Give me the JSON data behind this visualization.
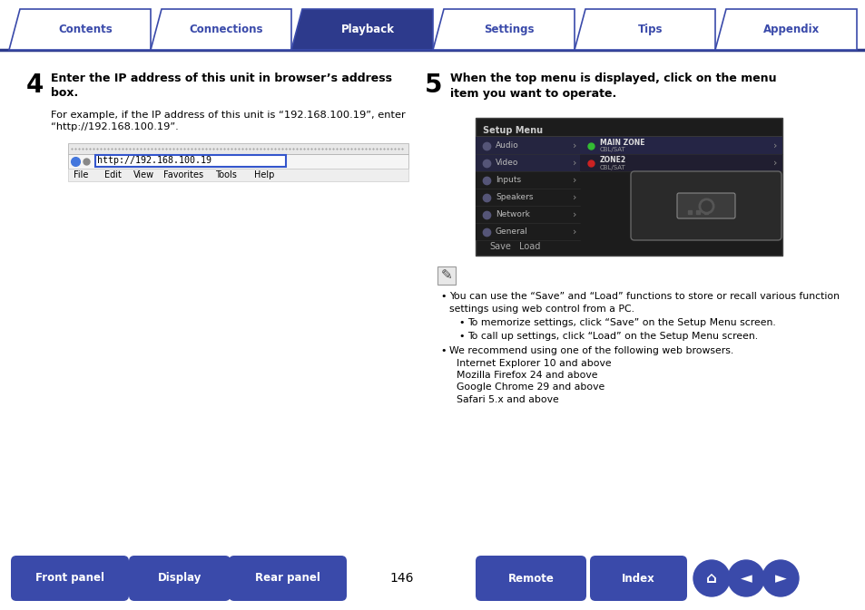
{
  "bg_color": "#ffffff",
  "tab_labels": [
    "Contents",
    "Connections",
    "Playback",
    "Settings",
    "Tips",
    "Appendix"
  ],
  "tab_active_idx": 2,
  "tab_color_active": "#2d3a8c",
  "tab_color_inactive": "#ffffff",
  "tab_text_color_active": "#ffffff",
  "tab_text_color_inactive": "#3a4aaa",
  "tab_border_color": "#3a4aaa",
  "divider_color": "#2d3a8c",
  "step4_number": "4",
  "step4_title": "Enter the IP address of this unit in browser’s address\nbox.",
  "step4_body1": "For example, if the IP address of this unit is “192.168.100.19”, enter\n“http://192.168.100.19”.",
  "step5_number": "5",
  "step5_title": "When the top menu is displayed, click on the menu\nitem you want to operate.",
  "note_bullet1": "You can use the “Save” and “Load” functions to store or recall various function\nsettings using web control from a PC.",
  "note_sub1": "To memorize settings, click “Save” on the Setup Menu screen.",
  "note_sub2": "To call up settings, click “Load” on the Setup Menu screen.",
  "note_bullet2_line0": "We recommend using one of the following web browsers.",
  "note_bullet2_lines": [
    "Internet Explorer 10 and above",
    "Mozilla Firefox 24 and above",
    "Google Chrome 29 and above",
    "Safari 5.x and above"
  ],
  "bottom_buttons": [
    "Front panel",
    "Display",
    "Rear panel",
    "Remote",
    "Index"
  ],
  "page_number": "146",
  "button_color": "#3a4aaa",
  "button_text_color": "#ffffff",
  "body_text_color": "#000000",
  "step_num_color": "#000000",
  "ss_menu_items": [
    "Audio",
    "Video",
    "Inputs",
    "Speakers",
    "Network",
    "General"
  ],
  "ss_setup_menu_label": "Setup Menu",
  "ss_save_label": "Save",
  "ss_load_label": "Load",
  "ss_main_zone": "MAIN ZONE",
  "ss_cbl_sat": "CBL/SAT",
  "ss_zone2": "ZONE2"
}
